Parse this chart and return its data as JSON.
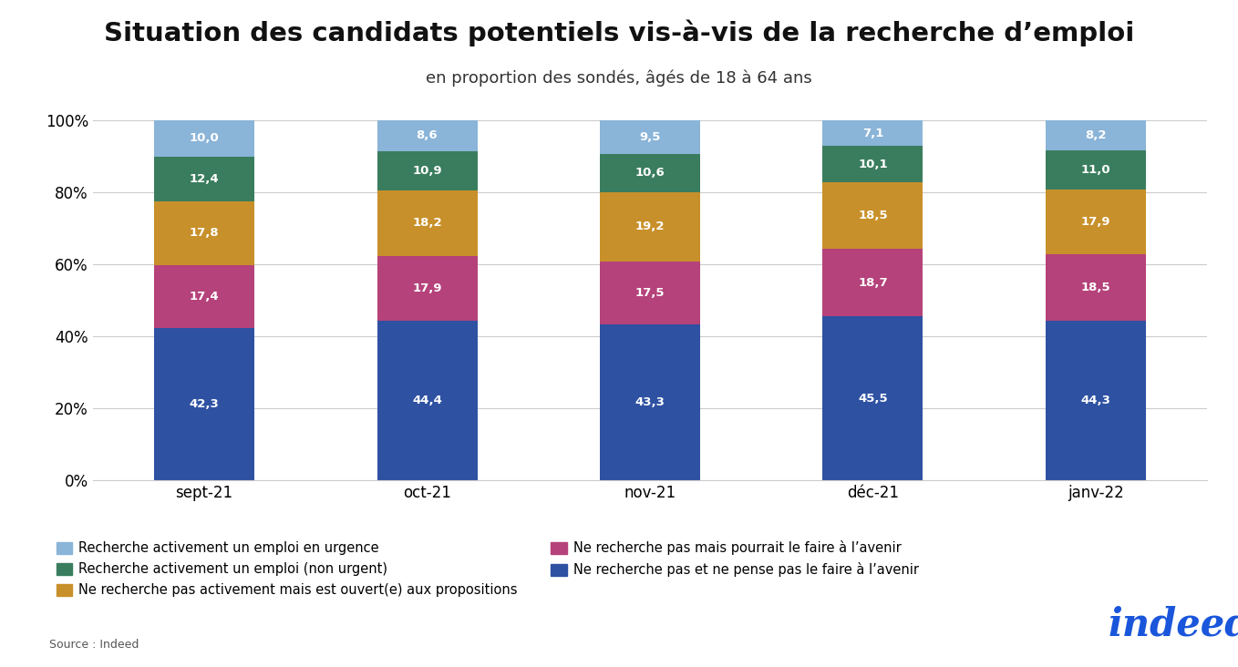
{
  "title": "Situation des candidats potentiels vis-à-vis de la recherche d’emploi",
  "subtitle": "en proportion des sondés, âgés de 18 à 64 ans",
  "categories": [
    "sept-21",
    "oct-21",
    "nov-21",
    "déc-21",
    "janv-22"
  ],
  "series": [
    {
      "label": "Ne recherche pas et ne pense pas le faire à l’avenir",
      "values": [
        42.3,
        44.4,
        43.3,
        45.5,
        44.3
      ],
      "color": "#2e51a2"
    },
    {
      "label": "Ne recherche pas mais pourrait le faire à l’avenir",
      "values": [
        17.4,
        17.9,
        17.5,
        18.7,
        18.5
      ],
      "color": "#b5427a"
    },
    {
      "label": "Ne recherche pas activement mais est ouvert(e) aux propositions",
      "values": [
        17.8,
        18.2,
        19.2,
        18.5,
        17.9
      ],
      "color": "#c8902a"
    },
    {
      "label": "Recherche activement un emploi (non urgent)",
      "values": [
        12.4,
        10.9,
        10.6,
        10.1,
        11.0
      ],
      "color": "#3a7d5e"
    },
    {
      "label": "Recherche activement un emploi en urgence",
      "values": [
        10.0,
        8.6,
        9.5,
        7.1,
        8.2
      ],
      "color": "#8ab4d8"
    }
  ],
  "ylim": [
    0,
    100
  ],
  "bar_width": 0.45,
  "source": "Source : Indeed",
  "background_color": "#ffffff",
  "title_fontsize": 21,
  "subtitle_fontsize": 13,
  "legend_fontsize": 10.5,
  "annotation_fontsize": 9.5,
  "tick_fontsize": 12
}
